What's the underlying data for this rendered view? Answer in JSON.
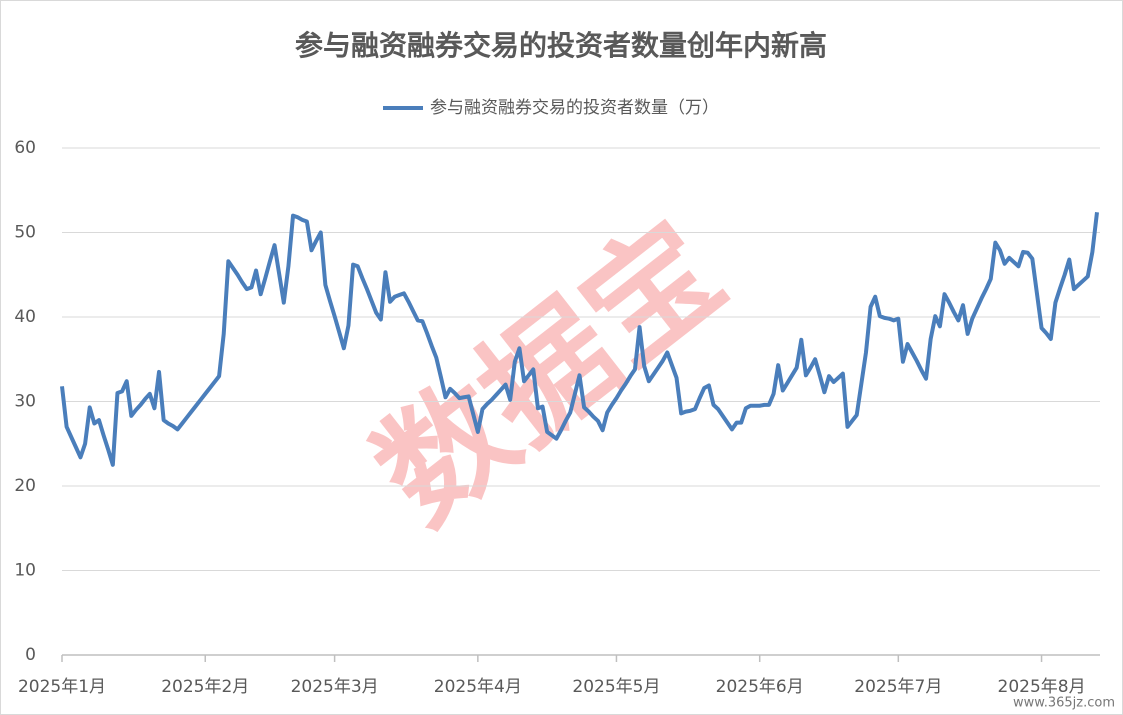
{
  "chart_data": {
    "type": "line",
    "title": "参与融资融券交易的投资者数量创年内新高",
    "watermark": "数据宝",
    "footer": "www.365jz.com",
    "categories": [
      "2025年1月",
      null,
      null,
      null,
      null,
      null,
      null,
      null,
      null,
      null,
      null,
      null,
      null,
      null,
      null,
      null,
      null,
      null,
      null,
      null,
      null,
      null,
      null,
      null,
      null,
      null,
      null,
      null,
      null,
      null,
      null,
      "2025年2月",
      null,
      null,
      null,
      null,
      null,
      null,
      null,
      null,
      null,
      null,
      null,
      null,
      null,
      null,
      null,
      null,
      null,
      null,
      null,
      null,
      null,
      null,
      null,
      null,
      null,
      null,
      null,
      "2025年3月",
      null,
      null,
      null,
      null,
      null,
      null,
      null,
      null,
      null,
      null,
      null,
      null,
      null,
      null,
      null,
      null,
      null,
      null,
      null,
      null,
      null,
      null,
      null,
      null,
      null,
      null,
      null,
      null,
      null,
      null,
      "2025年4月",
      null,
      null,
      null,
      null,
      null,
      null,
      null,
      null,
      null,
      null,
      null,
      null,
      null,
      null,
      null,
      null,
      null,
      null,
      null,
      null,
      null,
      null,
      null,
      null,
      null,
      null,
      null,
      null,
      null,
      "2025年5月",
      null,
      null,
      null,
      null,
      null,
      null,
      null,
      null,
      null,
      null,
      null,
      null,
      null,
      null,
      null,
      null,
      null,
      null,
      null,
      null,
      null,
      null,
      null,
      null,
      null,
      null,
      null,
      null,
      null,
      null,
      "2025年6月",
      null,
      null,
      null,
      null,
      null,
      null,
      null,
      null,
      null,
      null,
      null,
      null,
      null,
      null,
      null,
      null,
      null,
      null,
      null,
      null,
      null,
      null,
      null,
      null,
      null,
      null,
      null,
      null,
      null,
      "2025年7月",
      null,
      null,
      null,
      null,
      null,
      null,
      null,
      null,
      null,
      null,
      null,
      null,
      null,
      null,
      null,
      null,
      null,
      null,
      null,
      null,
      null,
      null,
      null,
      null,
      null,
      null,
      null,
      null,
      null,
      null,
      "2025年8月",
      null,
      null,
      null,
      null,
      null,
      null,
      null,
      null,
      null,
      null,
      null,
      null
    ],
    "series": [
      {
        "name": "参与融资融券交易的投资者数量（万）",
        "color": "#4a7ebb",
        "values": [
          31.8,
          27,
          25.8,
          24.6,
          23.4,
          25,
          29.3,
          27.4,
          27.8,
          26.0,
          24.3,
          22.5,
          31,
          31.2,
          32.4,
          28.3,
          29.0,
          29.6,
          30.3,
          30.9,
          29.2,
          33.5,
          27.8,
          27.4,
          27.1,
          26.7,
          27.4,
          28.1,
          28.8,
          29.5,
          30.2,
          30.9,
          31.6,
          32.3,
          33,
          38,
          46.6,
          45.8,
          45.0,
          44.1,
          43.3,
          43.5,
          45.5,
          42.7,
          44.6,
          46.6,
          48.5,
          45.1,
          41.7,
          46,
          52,
          51.8,
          51.5,
          51.3,
          47.9,
          49.0,
          50,
          43.8,
          41.9,
          40.1,
          38.2,
          36.3,
          39,
          46.2,
          46,
          44.6,
          43.3,
          41.9,
          40.5,
          39.7,
          45.3,
          41.8,
          42.4,
          42.6,
          42.8,
          41.8,
          40.7,
          39.6,
          39.5,
          38.1,
          36.6,
          35.2,
          32.9,
          30.5,
          31.5,
          31.0,
          30.4,
          30.5,
          30.6,
          28.5,
          26.4,
          29.1,
          29.7,
          30.2,
          30.8,
          31.4,
          32,
          30.2,
          34.7,
          36.3,
          32.4,
          33.1,
          33.8,
          29.2,
          29.4,
          26.4,
          26.0,
          25.6,
          26.6,
          27.7,
          28.7,
          30.9,
          33.1,
          29.3,
          28.8,
          28.2,
          27.7,
          26.6,
          28.7,
          29.6,
          30.4,
          31.3,
          32.1,
          33.0,
          33.8,
          38.8,
          34.2,
          32.4,
          33.2,
          34.0,
          34.8,
          35.8,
          34.3,
          32.8,
          28.6,
          28.8,
          28.9,
          29.1,
          30.4,
          31.6,
          31.9,
          29.6,
          29.1,
          28.3,
          27.5,
          26.7,
          27.5,
          27.5,
          29.2,
          29.5,
          29.5,
          29.5,
          29.6,
          29.6,
          30.9,
          34.3,
          31.3,
          32.2,
          33.1,
          34,
          37.3,
          33.1,
          34,
          35,
          33.1,
          31.1,
          33,
          32.3,
          32.8,
          33.3,
          27,
          27.7,
          28.4,
          32.1,
          35.8,
          41.2,
          42.4,
          40.1,
          39.9,
          39.8,
          39.6,
          39.8,
          34.7,
          36.8,
          35.8,
          34.8,
          33.7,
          32.7,
          37.4,
          40.1,
          38.9,
          42.7,
          41.7,
          40.6,
          39.6,
          41.4,
          38,
          39.8,
          41,
          42.2,
          43.3,
          44.5,
          48.8,
          47.9,
          46.3,
          47,
          46.5,
          46,
          47.7,
          47.6,
          46.9,
          42.8,
          38.7,
          38.1,
          37.4,
          41.7,
          43.4,
          45,
          46.8,
          43.3,
          43.8,
          44.3,
          44.8,
          47.7,
          52.4
        ]
      }
    ],
    "ylim": [
      0,
      60
    ],
    "yticks": [
      0,
      10,
      20,
      30,
      40,
      50,
      60
    ],
    "grid": true,
    "legend": "top"
  }
}
